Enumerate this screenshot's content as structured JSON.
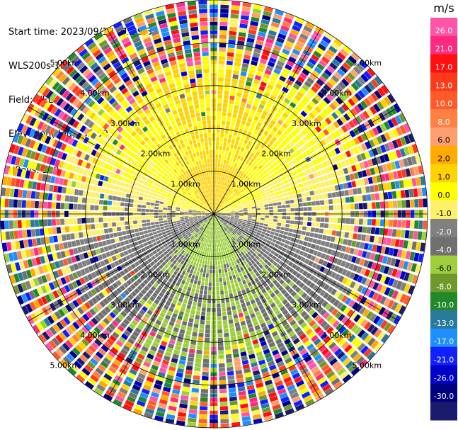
{
  "header": {
    "start_time": "Start time: 2023/09/19 01:29:35",
    "instrument": "WLS200s-181",
    "field": "Field: VEL",
    "elevation": "Elevation(deg): 35.30",
    "nrays": "NRays: 120"
  },
  "chart_data": {
    "type": "ppi",
    "field": "VEL",
    "units": "m/s",
    "n_rays": 120,
    "max_range_km": 5.0,
    "range_rings_km": [
      1,
      2,
      3,
      4,
      5
    ],
    "ring_labels": [
      "1.00km",
      "2.00km",
      "3.00km",
      "4.00km",
      "5.00km"
    ],
    "spokes_deg": [
      0,
      30,
      60,
      90,
      120,
      150,
      180,
      210,
      240,
      270,
      300,
      330
    ],
    "pattern": {
      "positive_direction": "north (upper half, yellow/orange)",
      "negative_direction": "south (lower half, green)",
      "noise_beyond_km": 3.6
    },
    "colorbar": {
      "label": "m/s",
      "ticks": [
        "26.0",
        "21.0",
        "17.0",
        "13.0",
        "10.0",
        "8.0",
        "6.0",
        "2.0",
        "1.0",
        "0.0",
        "-1.0",
        "-2.0",
        "-4.0",
        "-6.0",
        "-8.0",
        "-10.0",
        "-13.0",
        "-17.0",
        "-21.0",
        "-26.0",
        "-30.0"
      ],
      "bin_values": [
        30,
        26,
        21,
        17,
        13,
        10,
        8,
        6,
        4,
        2,
        1,
        0,
        -1,
        -2,
        -4,
        -6,
        -8,
        -10,
        -13,
        -17,
        -21,
        -26
      ],
      "colors": [
        "#ff55a8",
        "#ff2a7f",
        "#ff1010",
        "#ff3a1a",
        "#ff5a28",
        "#ff8040",
        "#ff9f70",
        "#ffaa00",
        "#ffd200",
        "#ffff00",
        "#fff06a",
        "#808080",
        "#707070",
        "#9ccf3a",
        "#6e9a2c",
        "#22882a",
        "#2a7a9c",
        "#1e8fff",
        "#1020ff",
        "#0000c8",
        "#000080",
        "#1a1a6e"
      ]
    }
  }
}
